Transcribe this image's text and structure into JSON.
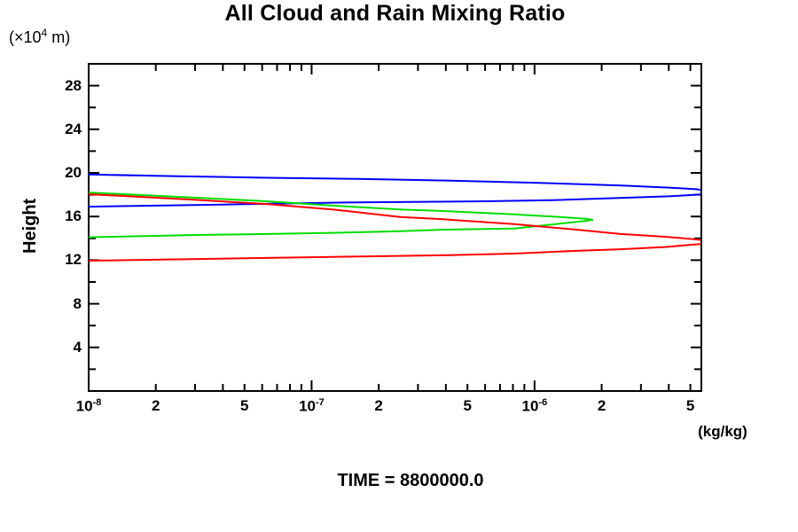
{
  "header": {
    "title": "All Cloud and Rain Mixing Ratio"
  },
  "labels": {
    "y_unit_prefix": "(×10",
    "y_unit_exp": "4",
    "y_unit_suffix": " m)",
    "y_axis_title": "Height",
    "x_unit": "(kg/kg)",
    "time_text": "TIME = 8800000.0"
  },
  "colors": {
    "axis": "#000000",
    "blue_series": "#0000ff",
    "green_series": "#00dd00",
    "red_series": "#ff0000"
  },
  "chart_data": {
    "type": "line",
    "title": "All Cloud and Rain Mixing Ratio",
    "xlabel": "(kg/kg)",
    "ylabel": "Height (x10^4 m)",
    "annotation": "TIME = 8800000.0",
    "x_scale": "log",
    "xlim": [
      1e-08,
      5.6e-06
    ],
    "ylim": [
      0,
      30
    ],
    "grid": false,
    "legend": "none",
    "x_ticks": {
      "decades": [
        -8,
        -7,
        -6
      ],
      "decade_label_base": "10",
      "minor_multiples": [
        2,
        3,
        4,
        5,
        6,
        7,
        8,
        9
      ],
      "labeled_multiples": [
        2,
        5
      ]
    },
    "y_ticks": {
      "major": [
        4,
        8,
        12,
        16,
        20,
        24,
        28
      ],
      "minor_step": 2,
      "max": 30
    },
    "series": [
      {
        "name": "blue-profile",
        "color": "#0000ff",
        "points": [
          [
            1e-08,
            19.85
          ],
          [
            2.5e-08,
            19.7
          ],
          [
            6.3e-08,
            19.55
          ],
          [
            1.6e-07,
            19.45
          ],
          [
            4e-07,
            19.3
          ],
          [
            1e-06,
            19.1
          ],
          [
            2.4e-06,
            18.85
          ],
          [
            4e-06,
            18.65
          ],
          [
            5.3e-06,
            18.5
          ],
          [
            6.1e-06,
            18.35
          ],
          [
            6.1e-06,
            18.1
          ],
          [
            5.3e-06,
            18.0
          ],
          [
            4e-06,
            17.85
          ],
          [
            2.4e-06,
            17.7
          ],
          [
            1.2e-06,
            17.5
          ],
          [
            6e-07,
            17.4
          ],
          [
            1.6e-07,
            17.3
          ],
          [
            4e-08,
            17.1
          ],
          [
            1e-08,
            16.9
          ]
        ]
      },
      {
        "name": "green-profile",
        "color": "#00dd00",
        "points": [
          [
            1e-08,
            18.2
          ],
          [
            2.9e-08,
            17.75
          ],
          [
            6.3e-08,
            17.4
          ],
          [
            1.24e-07,
            17.0
          ],
          [
            2.5e-07,
            16.65
          ],
          [
            3.9e-07,
            16.5
          ],
          [
            8.1e-07,
            16.2
          ],
          [
            1.3e-06,
            15.95
          ],
          [
            1.7e-06,
            15.8
          ],
          [
            1.82e-06,
            15.7
          ],
          [
            1.7e-06,
            15.6
          ],
          [
            1.3e-06,
            15.35
          ],
          [
            8.1e-07,
            14.9
          ],
          [
            3.9e-07,
            14.8
          ],
          [
            2.5e-07,
            14.65
          ],
          [
            1.24e-07,
            14.5
          ],
          [
            6.3e-08,
            14.4
          ],
          [
            2.9e-08,
            14.3
          ],
          [
            1e-08,
            14.1
          ]
        ]
      },
      {
        "name": "red-profile",
        "color": "#ff0000",
        "points": [
          [
            1e-08,
            18.05
          ],
          [
            2.9e-08,
            17.55
          ],
          [
            6.3e-08,
            17.15
          ],
          [
            1.24e-07,
            16.65
          ],
          [
            2.5e-07,
            15.95
          ],
          [
            3.9e-07,
            15.75
          ],
          [
            8.1e-07,
            15.3
          ],
          [
            1.54e-06,
            14.8
          ],
          [
            2.43e-06,
            14.4
          ],
          [
            3.84e-06,
            14.15
          ],
          [
            5.3e-06,
            13.9
          ],
          [
            6.1e-06,
            13.75
          ],
          [
            6.1e-06,
            13.55
          ],
          [
            5.3e-06,
            13.45
          ],
          [
            3.84e-06,
            13.2
          ],
          [
            2.43e-06,
            13.0
          ],
          [
            1.54e-06,
            12.85
          ],
          [
            8.1e-07,
            12.6
          ],
          [
            3.9e-07,
            12.45
          ],
          [
            1.24e-07,
            12.3
          ],
          [
            6.3e-08,
            12.2
          ],
          [
            2.9e-08,
            12.1
          ],
          [
            1e-08,
            11.95
          ]
        ]
      }
    ]
  }
}
